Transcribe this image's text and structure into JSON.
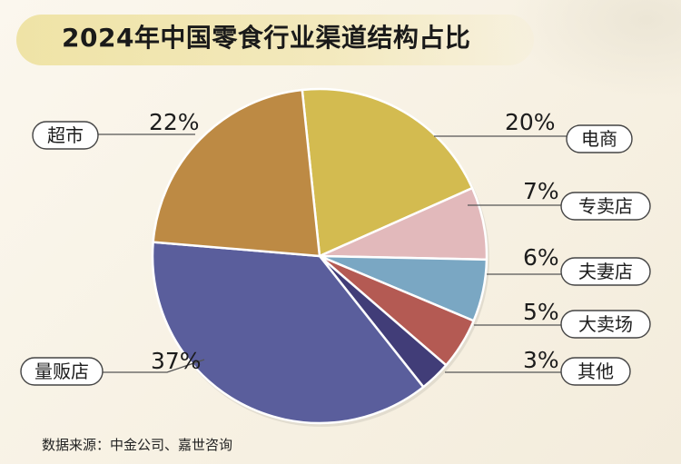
{
  "title": "2024年中国零食行业渠道结构占比",
  "source": "数据来源：中金公司、嘉世咨询",
  "chart_data": {
    "type": "pie",
    "title": "2024年中国零食行业渠道结构占比",
    "categories": [
      "量贩店",
      "超市",
      "电商",
      "专卖店",
      "夫妻店",
      "大卖场",
      "其他"
    ],
    "values": [
      37,
      22,
      20,
      7,
      6,
      5,
      3
    ],
    "value_labels": [
      "37%",
      "22%",
      "20%",
      "7%",
      "6%",
      "5%",
      "3%"
    ],
    "colors": [
      "#5a5e9c",
      "#bd8a44",
      "#d3bb50",
      "#e2b9bb",
      "#7aa7c3",
      "#b45a53",
      "#413d78"
    ]
  }
}
